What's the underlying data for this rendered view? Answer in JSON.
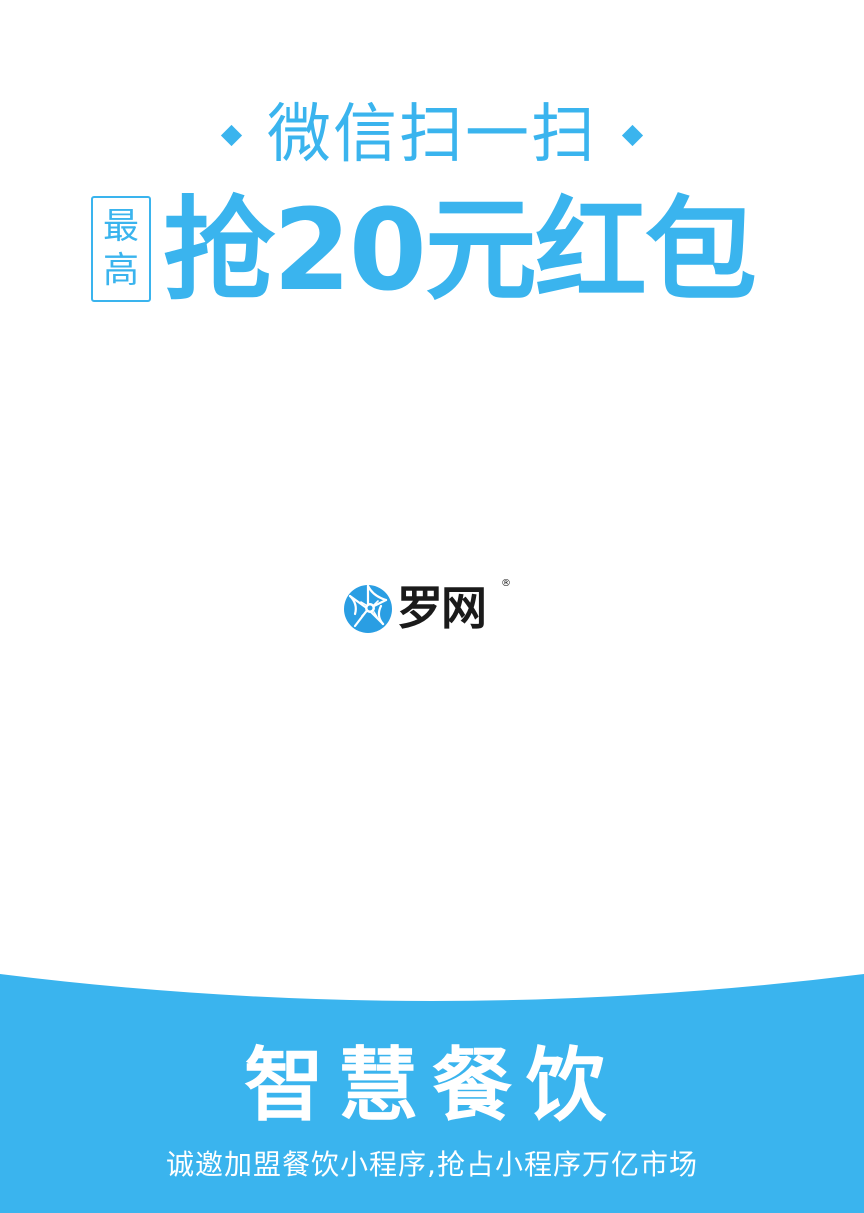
{
  "header": {
    "scan_text": "微信扫一扫",
    "max_badge": [
      "最",
      "高"
    ],
    "headline": "抢20元红包"
  },
  "logo": {
    "icon": "spider-web-logo-icon",
    "name": "罗网",
    "registered": "®"
  },
  "banner": {
    "title": "智慧餐饮",
    "subtitle": "诚邀加盟餐饮小程序,抢占小程序万亿市场"
  },
  "colors": {
    "accent": "#3ab4ee",
    "logo_text": "#1a1a1a",
    "banner_text": "#ffffff",
    "background": "#ffffff"
  }
}
